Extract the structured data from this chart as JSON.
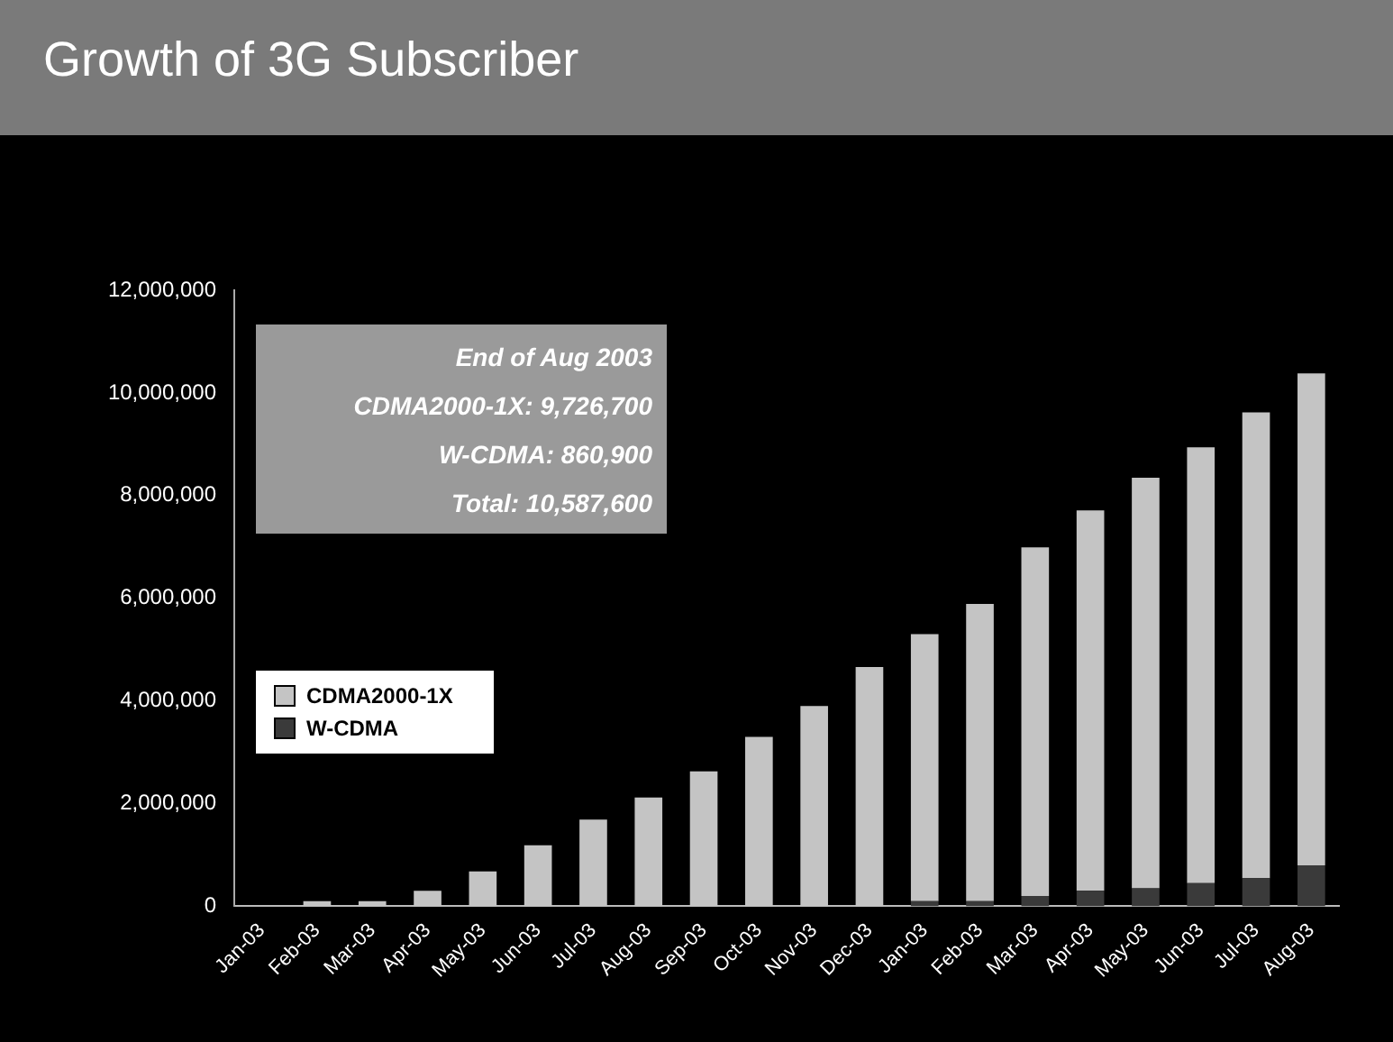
{
  "chart_data": {
    "type": "bar",
    "title": "Growth of 3G Subscriber",
    "stacked": true,
    "categories": [
      "Jan-03",
      "Feb-03",
      "Mar-03",
      "Apr-03",
      "May-03",
      "Jun-03",
      "Jul-03",
      "Aug-03",
      "Sep-03",
      "Oct-03",
      "Nov-03",
      "Dec-03",
      "Jan-03",
      "Feb-03",
      "Mar-03",
      "Apr-03",
      "May-03",
      "Jun-03",
      "Jul-03",
      "Aug-03"
    ],
    "series": [
      {
        "name": "W-CDMA",
        "color": "#3a3a3a",
        "values": [
          0,
          0,
          0,
          0,
          0,
          0,
          0,
          0,
          0,
          0,
          0,
          0,
          100000,
          100000,
          200000,
          300000,
          350000,
          450000,
          550000,
          800000
        ]
      },
      {
        "name": "CDMA2000-1X",
        "color": "#c4c4c4",
        "values": [
          0,
          100000,
          100000,
          300000,
          680000,
          1190000,
          1690000,
          2120000,
          2630000,
          3300000,
          3900000,
          4660000,
          5200000,
          5790000,
          6790000,
          7410000,
          8000000,
          8490000,
          9070000,
          9580000
        ]
      }
    ],
    "ylim": [
      0,
      12000000
    ],
    "yticks": [
      {
        "value": 0,
        "label": "0"
      },
      {
        "value": 2000000,
        "label": "2,000,000"
      },
      {
        "value": 4000000,
        "label": "4,000,000"
      },
      {
        "value": 6000000,
        "label": "6,000,000"
      },
      {
        "value": 8000000,
        "label": "8,000,000"
      },
      {
        "value": 10000000,
        "label": "10,000,000"
      },
      {
        "value": 12000000,
        "label": "12,000,000"
      }
    ],
    "legend": "bottom left",
    "annotations": [
      "End of Aug 2003",
      "CDMA2000-1X: 9,726,700",
      "W-CDMA: 860,900",
      "Total: 10,587,600"
    ]
  }
}
